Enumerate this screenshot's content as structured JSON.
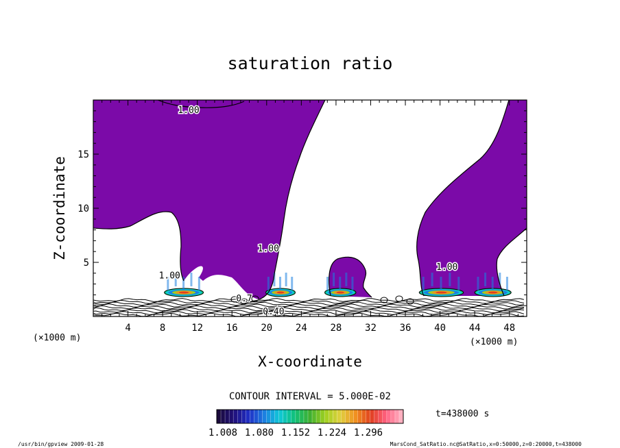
{
  "chart_data": {
    "type": "contour",
    "title": "saturation ratio",
    "xlabel": "X-coordinate",
    "ylabel": "Z-coordinate",
    "x_unit_label": "(×1000 m)",
    "z_unit_label": "(×1000 m)",
    "xlim": [
      0,
      50
    ],
    "ylim": [
      0,
      20
    ],
    "x_ticks": [
      4,
      8,
      12,
      16,
      20,
      24,
      28,
      32,
      36,
      40,
      44,
      48
    ],
    "y_ticks": [
      5,
      10,
      15
    ],
    "contour_interval_text": "CONTOUR INTERVAL = 5.000E-02",
    "contour_labels": [
      {
        "text": "1.00",
        "x": 11,
        "z": 18.8
      },
      {
        "text": "1.00",
        "x": 20.2,
        "z": 6.0
      },
      {
        "text": "1.00",
        "x": 40.8,
        "z": 4.3
      },
      {
        "text": "1.00",
        "x": 8.8,
        "z": 3.5
      },
      {
        "text": "0.40",
        "x": 20.8,
        "z": 0.2
      },
      {
        "text": "0.7",
        "x": 17.4,
        "z": 1.4
      }
    ],
    "colorbar": {
      "tick_labels": [
        "1.008",
        "1.080",
        "1.152",
        "1.224",
        "1.296"
      ],
      "colors": [
        "#1a0a3c",
        "#20107a",
        "#2030c8",
        "#1c80e0",
        "#10c8d8",
        "#10c078",
        "#40b030",
        "#a0d020",
        "#e0d040",
        "#f09020",
        "#e04020",
        "#ff6080",
        "#ffb0c0"
      ]
    },
    "time_label": "t=438000 s",
    "saturated_color": "#7b0aa8"
  },
  "footer": {
    "left": "/usr/bin/gpview  2009-01-28",
    "right": "MarsCond_SatRatio.nc@SatRatio,x=0:50000,z=0:20000,t=438000"
  }
}
